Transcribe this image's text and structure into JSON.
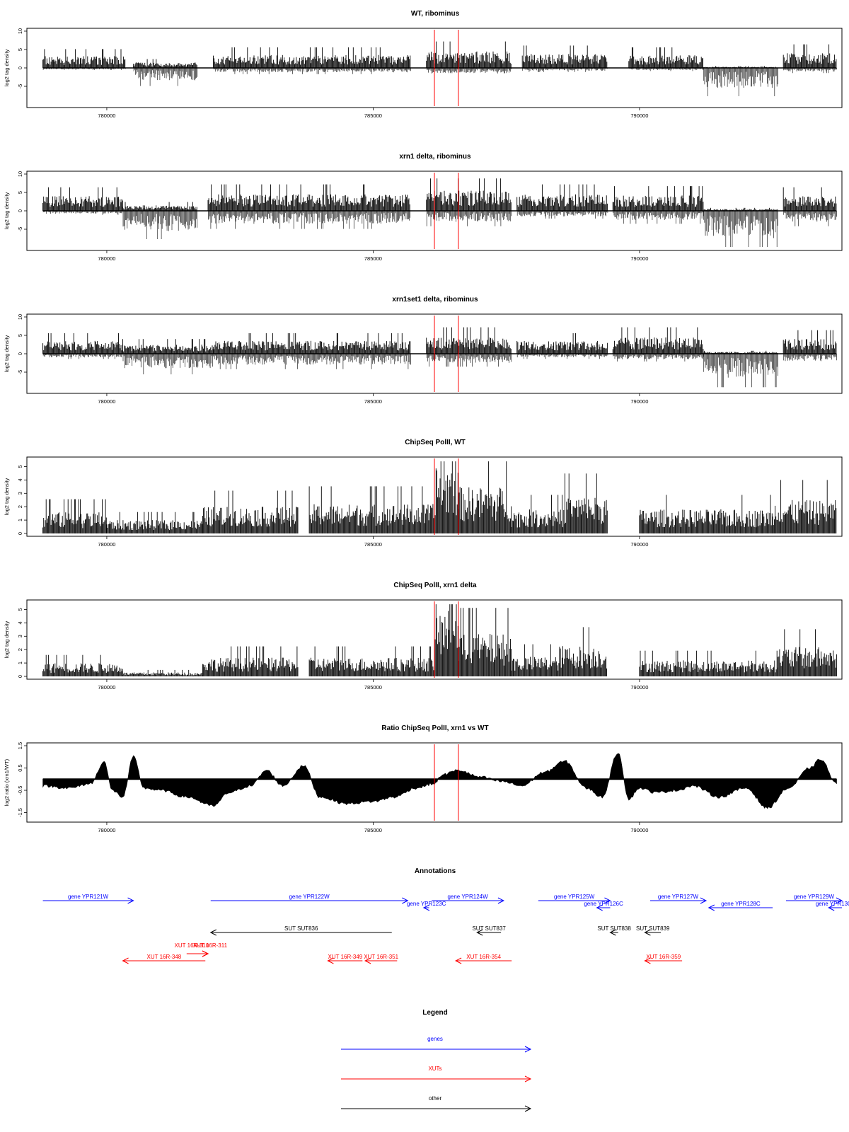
{
  "chart_data": [
    {
      "type": "bar",
      "title": "WT, ribominus",
      "ylabel": "log2 tag density",
      "ylim": [
        -10,
        10
      ],
      "yticks": [
        "10",
        "5",
        "0",
        "-5"
      ],
      "xlim": [
        778500,
        793800
      ],
      "xticks": [
        "780000",
        "785000",
        "790000"
      ],
      "red_lines": [
        786150,
        786600
      ],
      "segments": [
        {
          "x": [
            778800,
            780350
          ],
          "pos": 3.2,
          "neg": 0.4
        },
        {
          "x": [
            780500,
            781700
          ],
          "pos": 1.5,
          "neg": 3.5
        },
        {
          "x": [
            782000,
            785700
          ],
          "pos": 3.5,
          "neg": 1.2
        },
        {
          "x": [
            786000,
            787600
          ],
          "pos": 4.5,
          "neg": 1.5
        },
        {
          "x": [
            787800,
            789400
          ],
          "pos": 3.8,
          "neg": 0.8
        },
        {
          "x": [
            789800,
            791200
          ],
          "pos": 3.5,
          "neg": 0.6
        },
        {
          "x": [
            791200,
            792600
          ],
          "pos": 0.3,
          "neg": 5.5
        },
        {
          "x": [
            792700,
            793700
          ],
          "pos": 4.0,
          "neg": 1.0
        }
      ]
    },
    {
      "type": "bar",
      "title": "xrn1 delta, ribominus",
      "ylabel": "log2 tag density",
      "ylim": [
        -10,
        10
      ],
      "yticks": [
        "10",
        "5",
        "0",
        "-5"
      ],
      "xlim": [
        778500,
        793800
      ],
      "xticks": [
        "780000",
        "785000",
        "790000"
      ],
      "red_lines": [
        786150,
        786600
      ],
      "segments": [
        {
          "x": [
            778800,
            780300
          ],
          "pos": 4.0,
          "neg": 0.8
        },
        {
          "x": [
            780300,
            781700
          ],
          "pos": 1.5,
          "neg": 5.5
        },
        {
          "x": [
            781900,
            785700
          ],
          "pos": 4.5,
          "neg": 3.5
        },
        {
          "x": [
            786000,
            787600
          ],
          "pos": 5.5,
          "neg": 3.0
        },
        {
          "x": [
            787700,
            789400
          ],
          "pos": 4.5,
          "neg": 1.5
        },
        {
          "x": [
            789500,
            791200
          ],
          "pos": 4.2,
          "neg": 2.5
        },
        {
          "x": [
            791200,
            792600
          ],
          "pos": 0.5,
          "neg": 7.5
        },
        {
          "x": [
            792700,
            793700
          ],
          "pos": 4.0,
          "neg": 3.0
        }
      ]
    },
    {
      "type": "bar",
      "title": "xrn1set1 delta, ribominus",
      "ylabel": "log2 tag density",
      "ylim": [
        -10,
        10
      ],
      "yticks": [
        "10",
        "5",
        "0",
        "-5"
      ],
      "xlim": [
        778500,
        793800
      ],
      "xticks": [
        "780000",
        "785000",
        "790000"
      ],
      "red_lines": [
        786150,
        786600
      ],
      "segments": [
        {
          "x": [
            778800,
            780300
          ],
          "pos": 3.5,
          "neg": 1.0
        },
        {
          "x": [
            780300,
            782000
          ],
          "pos": 2.5,
          "neg": 4.0
        },
        {
          "x": [
            782000,
            785700
          ],
          "pos": 3.5,
          "neg": 3.0
        },
        {
          "x": [
            786000,
            787600
          ],
          "pos": 4.5,
          "neg": 2.5
        },
        {
          "x": [
            787700,
            789400
          ],
          "pos": 3.5,
          "neg": 1.0
        },
        {
          "x": [
            789500,
            791200
          ],
          "pos": 4.5,
          "neg": 1.5
        },
        {
          "x": [
            791200,
            792600
          ],
          "pos": 0.5,
          "neg": 6.5
        },
        {
          "x": [
            792700,
            793700
          ],
          "pos": 4.0,
          "neg": 2.0
        }
      ]
    },
    {
      "type": "bar",
      "title": "ChipSeq PolII, WT",
      "ylabel": "log2 tag density",
      "ylim": [
        0,
        5.5
      ],
      "yticks": [
        "5",
        "4",
        "3",
        "2",
        "1",
        "0"
      ],
      "xlim": [
        778500,
        793800
      ],
      "xticks": [
        "780000",
        "785000",
        "790000"
      ],
      "red_lines": [
        786150,
        786600
      ],
      "segments": [
        {
          "x": [
            778800,
            780000
          ],
          "pos": 1.6
        },
        {
          "x": [
            780000,
            781800
          ],
          "pos": 1.0
        },
        {
          "x": [
            781800,
            783600
          ],
          "pos": 2.0
        },
        {
          "x": [
            783800,
            786150
          ],
          "pos": 2.2
        },
        {
          "x": [
            786150,
            786600
          ],
          "pos": 5.2
        },
        {
          "x": [
            786600,
            787600
          ],
          "pos": 3.5
        },
        {
          "x": [
            787600,
            788600
          ],
          "pos": 1.8
        },
        {
          "x": [
            788600,
            789400
          ],
          "pos": 2.8
        },
        {
          "x": [
            790000,
            792500
          ],
          "pos": 1.8
        },
        {
          "x": [
            792500,
            793700
          ],
          "pos": 2.5
        }
      ]
    },
    {
      "type": "bar",
      "title": "ChipSeq PolII, xrn1 delta",
      "ylabel": "log2 tag density",
      "ylim": [
        0,
        5.5
      ],
      "yticks": [
        "5",
        "4",
        "3",
        "2",
        "1",
        "0"
      ],
      "xlim": [
        778500,
        793800
      ],
      "xticks": [
        "780000",
        "785000",
        "790000"
      ],
      "red_lines": [
        786150,
        786600
      ],
      "segments": [
        {
          "x": [
            778800,
            780300
          ],
          "pos": 1.0
        },
        {
          "x": [
            780300,
            781800
          ],
          "pos": 0.3
        },
        {
          "x": [
            781800,
            783600
          ],
          "pos": 1.4
        },
        {
          "x": [
            783800,
            786150
          ],
          "pos": 1.4
        },
        {
          "x": [
            786150,
            786600
          ],
          "pos": 5.0
        },
        {
          "x": [
            786600,
            787600
          ],
          "pos": 3.2
        },
        {
          "x": [
            787600,
            788500
          ],
          "pos": 1.5
        },
        {
          "x": [
            788500,
            789400
          ],
          "pos": 2.3
        },
        {
          "x": [
            790000,
            792600
          ],
          "pos": 1.2
        },
        {
          "x": [
            792600,
            793700
          ],
          "pos": 2.2
        }
      ]
    },
    {
      "type": "area",
      "title": "Ratio ChipSeq PolII, xrn1 vs WT",
      "ylabel": "log2 ratio (xrn1/WT)",
      "ylim": [
        -1.8,
        1.5
      ],
      "yticks": [
        "1.5",
        "0.5",
        "-0.5",
        "-1.5"
      ],
      "xlim": [
        778500,
        793800
      ],
      "xticks": [
        "780000",
        "785000",
        "790000"
      ],
      "red_lines": [
        786150,
        786600
      ],
      "x": [
        778800,
        779300,
        779700,
        779950,
        780100,
        780300,
        780500,
        780700,
        781000,
        781500,
        782000,
        782300,
        782700,
        783000,
        783300,
        783700,
        784000,
        784500,
        785000,
        785400,
        785800,
        786150,
        786300,
        786600,
        787000,
        787400,
        787800,
        788200,
        788600,
        789000,
        789300,
        789600,
        789800,
        790000,
        790300,
        790700,
        791000,
        791500,
        792000,
        792400,
        792800,
        793200,
        793400,
        793700
      ],
      "y": [
        -0.3,
        -0.4,
        -0.2,
        0.8,
        -0.5,
        -0.8,
        1.0,
        -0.4,
        -0.5,
        -0.8,
        -1.2,
        -0.6,
        -0.3,
        0.4,
        -0.3,
        0.6,
        -0.8,
        -1.1,
        -1.0,
        -0.8,
        -0.4,
        -0.2,
        0.2,
        0.4,
        0.1,
        -0.1,
        -0.3,
        0.3,
        0.8,
        -0.4,
        -0.8,
        1.2,
        -0.9,
        -0.4,
        -0.6,
        -0.5,
        -0.3,
        -0.8,
        -0.4,
        -1.3,
        -0.4,
        0.5,
        0.9,
        -0.2
      ]
    }
  ],
  "annotations": {
    "title": "Annotations",
    "items": [
      {
        "label": "gene YPR121W",
        "start": 778800,
        "end": 780500,
        "row": 0,
        "color": "#0000ff"
      },
      {
        "label": "gene YPR122W",
        "start": 781950,
        "end": 785650,
        "row": 0,
        "color": "#0000ff"
      },
      {
        "label": "gene YPR123C",
        "start": 786050,
        "end": 785950,
        "row": 1,
        "color": "#0000ff"
      },
      {
        "label": "gene YPR124W",
        "start": 786100,
        "end": 787450,
        "row": 0,
        "color": "#0000ff"
      },
      {
        "label": "gene YPR125W",
        "start": 788100,
        "end": 789450,
        "row": 0,
        "color": "#0000ff"
      },
      {
        "label": "gene YPR126C",
        "start": 789450,
        "end": 789200,
        "row": 1,
        "color": "#0000ff"
      },
      {
        "label": "gene YPR127W",
        "start": 790200,
        "end": 791250,
        "row": 0,
        "color": "#0000ff"
      },
      {
        "label": "gene YPR128C",
        "start": 792500,
        "end": 791300,
        "row": 1,
        "color": "#0000ff"
      },
      {
        "label": "gene YPR129W",
        "start": 792750,
        "end": 793800,
        "row": 0,
        "color": "#0000ff"
      },
      {
        "label": "gene YPR130C",
        "start": 793800,
        "end": 793550,
        "row": 1,
        "color": "#0000ff"
      },
      {
        "label": "SUT SUT836",
        "start": 785350,
        "end": 781950,
        "row": 2,
        "color": "#000000"
      },
      {
        "label": "SUT SUT837",
        "start": 787400,
        "end": 786950,
        "row": 2,
        "color": "#000000"
      },
      {
        "label": "SUT SUT838",
        "start": 789600,
        "end": 789450,
        "row": 2,
        "color": "#000000"
      },
      {
        "label": "SUT SUT839",
        "start": 790400,
        "end": 790100,
        "row": 2,
        "color": "#000000"
      },
      {
        "label": "XUT 16R-310",
        "start": 781500,
        "end": 781900,
        "row": 3,
        "color": "#ff0000"
      },
      {
        "label": "XUT 16R-311",
        "start": 781500,
        "end": 781900,
        "row": 3,
        "color": "#ff0000"
      },
      {
        "label": "XUT 16R-348",
        "start": 781850,
        "end": 780300,
        "row": 4,
        "color": "#ff0000"
      },
      {
        "label": "XUT 16R-349",
        "start": 784800,
        "end": 784150,
        "row": 4,
        "color": "#ff0000"
      },
      {
        "label": "XUT 16R-351",
        "start": 785450,
        "end": 784850,
        "row": 4,
        "color": "#ff0000"
      },
      {
        "label": "XUT 16R-354",
        "start": 787600,
        "end": 786550,
        "row": 4,
        "color": "#ff0000"
      },
      {
        "label": "XUT 16R-359",
        "start": 790800,
        "end": 790100,
        "row": 4,
        "color": "#ff0000"
      }
    ]
  },
  "legend": {
    "title": "Legend",
    "items": [
      {
        "label": "genes",
        "color": "#0000ff"
      },
      {
        "label": "XUTs",
        "color": "#ff0000"
      },
      {
        "label": "other",
        "color": "#000000"
      }
    ]
  }
}
